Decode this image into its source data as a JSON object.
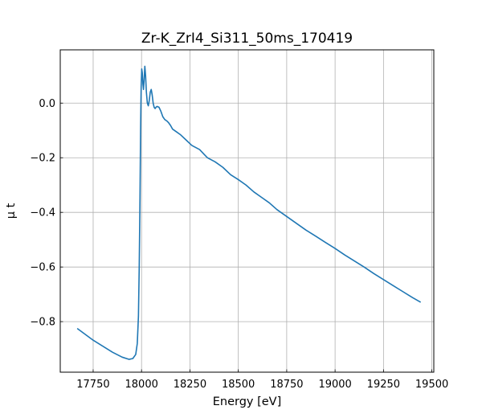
{
  "chart_data": {
    "type": "line",
    "title": "Zr-K_ZrI4_Si311_50ms_170419",
    "xlabel": "Energy [eV]",
    "ylabel": "μ t",
    "xlim": [
      17580,
      19510
    ],
    "ylim": [
      -0.985,
      0.195
    ],
    "xticks": [
      17750,
      18000,
      18250,
      18500,
      18750,
      19000,
      19250,
      19500
    ],
    "yticks": [
      0.0,
      -0.2,
      -0.4,
      -0.6,
      -0.8
    ],
    "xtick_labels": [
      "17750",
      "18000",
      "18250",
      "18500",
      "18750",
      "19000",
      "19250",
      "19500"
    ],
    "ytick_labels": [
      "0.0",
      "−0.2",
      "−0.4",
      "−0.6",
      "−0.8"
    ],
    "grid": true,
    "series_color": "#1f77b4",
    "series": [
      {
        "x": [
          17670,
          17750,
          17850,
          17900,
          17935,
          17955,
          17970,
          17978,
          17984,
          17988,
          17992,
          17995,
          17998,
          18001,
          18004,
          18007,
          18010,
          18013,
          18017,
          18021,
          18025,
          18030,
          18035,
          18040,
          18045,
          18050,
          18055,
          18060,
          18065,
          18070,
          18075,
          18080,
          18090,
          18100,
          18110,
          18120,
          18130,
          18140,
          18150,
          18160,
          18180,
          18200,
          18230,
          18260,
          18300,
          18340,
          18380,
          18420,
          18460,
          18500,
          18540,
          18580,
          18620,
          18660,
          18700,
          18750,
          18800,
          18850,
          18900,
          18950,
          19000,
          19050,
          19100,
          19150,
          19200,
          19250,
          19300,
          19350,
          19400,
          19440
        ],
        "y": [
          -0.826,
          -0.868,
          -0.912,
          -0.93,
          -0.938,
          -0.935,
          -0.92,
          -0.88,
          -0.78,
          -0.6,
          -0.35,
          -0.1,
          0.06,
          0.125,
          0.11,
          0.07,
          0.05,
          0.08,
          0.135,
          0.1,
          0.04,
          0.0,
          -0.01,
          0.01,
          0.04,
          0.05,
          0.03,
          0.0,
          -0.015,
          -0.02,
          -0.015,
          -0.012,
          -0.015,
          -0.03,
          -0.05,
          -0.06,
          -0.065,
          -0.072,
          -0.082,
          -0.095,
          -0.105,
          -0.115,
          -0.135,
          -0.155,
          -0.17,
          -0.2,
          -0.215,
          -0.235,
          -0.262,
          -0.28,
          -0.3,
          -0.325,
          -0.345,
          -0.365,
          -0.39,
          -0.415,
          -0.44,
          -0.465,
          -0.487,
          -0.51,
          -0.532,
          -0.556,
          -0.578,
          -0.6,
          -0.624,
          -0.646,
          -0.668,
          -0.69,
          -0.712,
          -0.728
        ]
      }
    ]
  }
}
